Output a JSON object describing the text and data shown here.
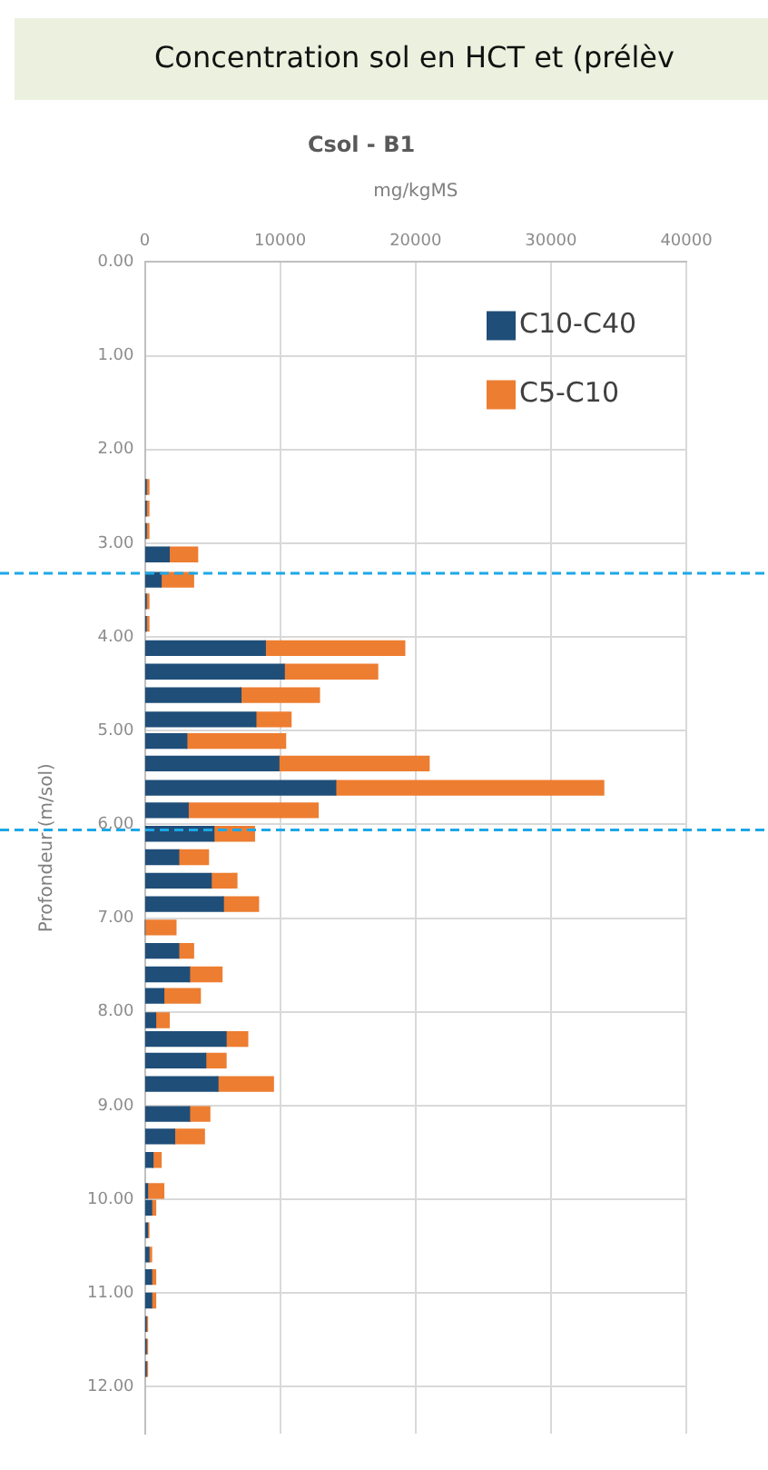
{
  "chart_data": {
    "type": "bar",
    "orientation": "horizontal",
    "stacked": true,
    "title": "Concentration sol en HCT et (prélèv",
    "subtitle": "Csol - B1",
    "xlabel": "mg/kgMS",
    "ylabel": "Profondeur (m/sol)",
    "x": [
      2.4,
      2.63,
      2.87,
      3.12,
      3.39,
      3.62,
      3.86,
      4.12,
      4.37,
      4.62,
      4.88,
      5.11,
      5.35,
      5.61,
      5.85,
      6.1,
      6.35,
      6.6,
      6.85,
      7.1,
      7.35,
      7.6,
      7.83,
      8.09,
      8.29,
      8.52,
      8.77,
      9.09,
      9.33,
      9.58,
      9.91,
      10.09,
      10.33,
      10.59,
      10.83,
      11.08,
      11.33,
      11.57,
      11.81
    ],
    "series": [
      {
        "name": "C10-C40",
        "color": "#1f4e79",
        "values": [
          100,
          100,
          100,
          1800,
          1200,
          100,
          100,
          8900,
          10300,
          7100,
          8200,
          3100,
          9900,
          14100,
          3200,
          5100,
          2500,
          4900,
          5800,
          0,
          2500,
          3300,
          1400,
          800,
          6000,
          4500,
          5400,
          3300,
          2200,
          600,
          200,
          500,
          200,
          300,
          500,
          500,
          100,
          100,
          100
        ]
      },
      {
        "name": "C5-C10",
        "color": "#ed7d31",
        "values": [
          200,
          200,
          200,
          2100,
          2400,
          200,
          200,
          10300,
          6900,
          5800,
          2600,
          7300,
          11100,
          19800,
          9600,
          3000,
          2200,
          1900,
          2600,
          2300,
          1100,
          2400,
          2700,
          1000,
          1600,
          1500,
          4100,
          1500,
          2200,
          600,
          1200,
          300,
          100,
          200,
          300,
          300,
          100,
          100,
          100
        ]
      }
    ],
    "xlim": [
      0,
      40000
    ],
    "xticks": [
      0,
      10000,
      20000,
      30000,
      40000
    ],
    "ylim": [
      12.5,
      0
    ],
    "yticks": [
      {
        "value": 0,
        "label": "0.00"
      },
      {
        "value": 1,
        "label": "1.00"
      },
      {
        "value": 2,
        "label": "2.00"
      },
      {
        "value": 3,
        "label": "3.00"
      },
      {
        "value": 4,
        "label": "4.00"
      },
      {
        "value": 5,
        "label": "5.00"
      },
      {
        "value": 6,
        "label": "6.00"
      },
      {
        "value": 7,
        "label": "7.00"
      },
      {
        "value": 8,
        "label": "8.00"
      },
      {
        "value": 9,
        "label": "9.00"
      },
      {
        "value": 10,
        "label": "10.00"
      },
      {
        "value": 11,
        "label": "11.00"
      },
      {
        "value": 12,
        "label": "12.00"
      }
    ],
    "ref_lines": [
      {
        "axis": "y",
        "value": 3.32,
        "color": "#1ca8e8",
        "line_style": "dashed"
      },
      {
        "axis": "y",
        "value": 6.06,
        "color": "#1ca8e8",
        "line_style": "dashed"
      }
    ],
    "grid": true,
    "legend": "top right"
  }
}
